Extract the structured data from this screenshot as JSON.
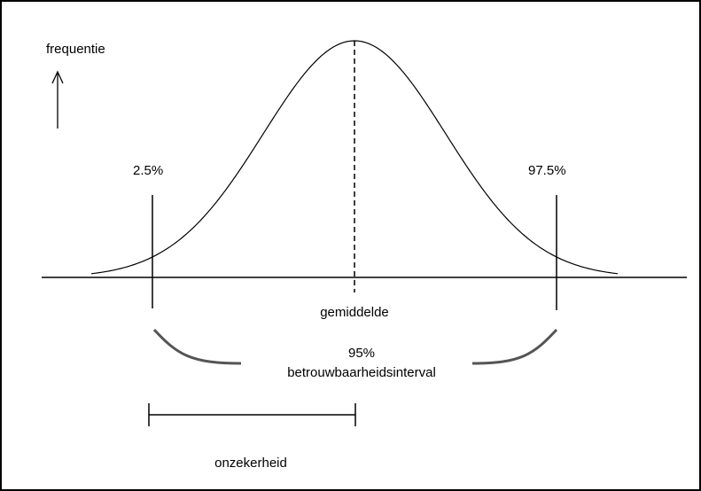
{
  "labels": {
    "y_axis": "frequentie",
    "lower": "2.5%",
    "upper": "97.5%",
    "mean": "gemiddelde",
    "interval_pct": "95%",
    "interval": "betrouwbaarheidsinterval",
    "uncertainty": "onzekerheid"
  }
}
